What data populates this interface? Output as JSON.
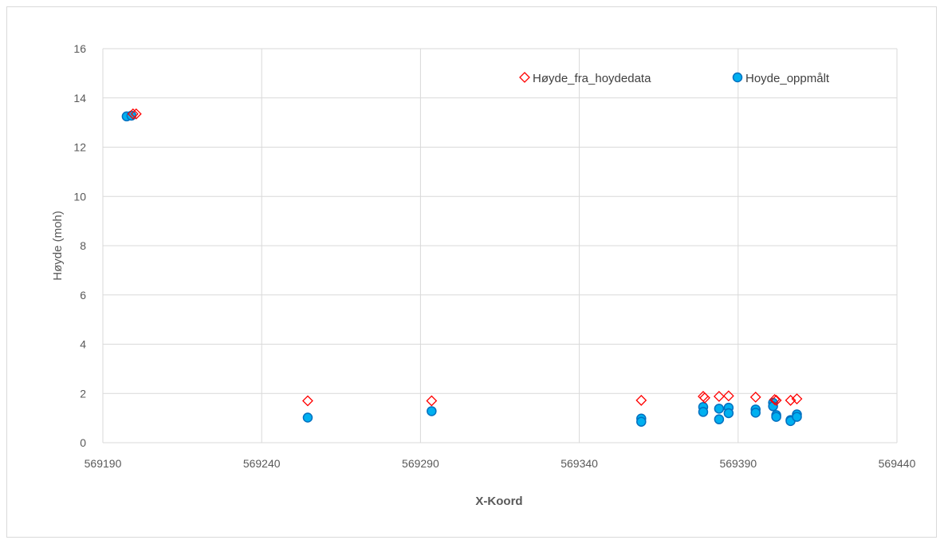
{
  "chart_data": {
    "type": "scatter",
    "title": "",
    "xlabel": "X-Koord",
    "ylabel": "Høyde (moh)",
    "xlim": [
      569190,
      569440
    ],
    "ylim": [
      0,
      16
    ],
    "x_ticks": [
      "569190",
      "569240",
      "569290",
      "569340",
      "569390",
      "569440"
    ],
    "y_ticks": [
      "0",
      "2",
      "4",
      "6",
      "8",
      "10",
      "12",
      "14",
      "16"
    ],
    "grid": true,
    "legend_position": "top-right",
    "series": [
      {
        "name": "Høyde_fra_hoydedata",
        "marker": "diamond-open",
        "color": "#ff0000",
        "points": [
          [
            569199.5,
            13.35
          ],
          [
            569200.5,
            13.35
          ],
          [
            569254.5,
            1.7
          ],
          [
            569293.5,
            1.7
          ],
          [
            569359.5,
            1.72
          ],
          [
            569379,
            1.88
          ],
          [
            569379.5,
            1.82
          ],
          [
            569384,
            1.88
          ],
          [
            569387,
            1.9
          ],
          [
            569395.5,
            1.85
          ],
          [
            569401.5,
            1.75
          ],
          [
            569402,
            1.72
          ],
          [
            569406.5,
            1.72
          ],
          [
            569408.5,
            1.78
          ]
        ]
      },
      {
        "name": "Hoyde_oppmålt",
        "marker": "circle",
        "color": "#00b0f0",
        "points": [
          [
            569197.5,
            13.25
          ],
          [
            569199,
            13.28
          ],
          [
            569254.5,
            1.02
          ],
          [
            569293.5,
            1.28
          ],
          [
            569359.5,
            0.98
          ],
          [
            569359.5,
            0.85
          ],
          [
            569379,
            1.45
          ],
          [
            569379,
            1.25
          ],
          [
            569384,
            1.38
          ],
          [
            569384,
            0.95
          ],
          [
            569387,
            1.42
          ],
          [
            569387,
            1.2
          ],
          [
            569395.5,
            1.35
          ],
          [
            569395.5,
            1.22
          ],
          [
            569401,
            1.62
          ],
          [
            569401,
            1.48
          ],
          [
            569402,
            1.12
          ],
          [
            569402,
            1.05
          ],
          [
            569406.5,
            0.92
          ],
          [
            569406.5,
            0.88
          ],
          [
            569408.5,
            1.15
          ],
          [
            569408.5,
            1.05
          ]
        ]
      }
    ]
  }
}
